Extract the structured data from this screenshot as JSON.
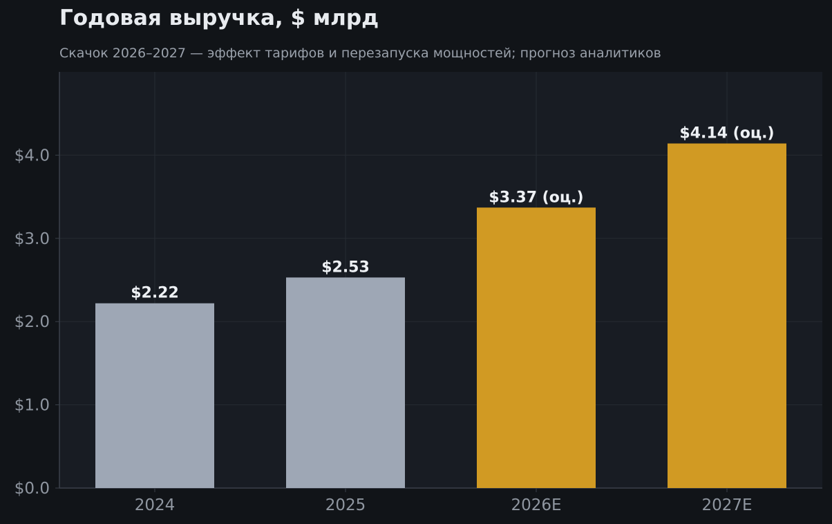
{
  "chart_data": {
    "type": "bar",
    "title": "Годовая выручка, $ млрд",
    "subtitle": "Скачок 2026–2027 — эффект тарифов и перезапуска мощностей; прогноз аналитиков",
    "categories": [
      "2024",
      "2025",
      "2026E",
      "2027E"
    ],
    "values": [
      2.22,
      2.53,
      3.37,
      4.14
    ],
    "data_labels": [
      "$2.22",
      "$2.53",
      "$3.37 (оц.)",
      "$4.14 (оц.)"
    ],
    "estimate": [
      false,
      false,
      true,
      true
    ],
    "ylim": [
      0,
      5.0
    ],
    "yticks": [
      0,
      1,
      2,
      3,
      4
    ],
    "ytick_labels": [
      "$0.0",
      "$1.0",
      "$2.0",
      "$3.0",
      "$4.0"
    ],
    "xlabel": "",
    "ylabel": "",
    "grid": true,
    "legend": "none",
    "colors": {
      "actual": "#9ea7b5",
      "estimate": "#d19a23",
      "background": "#111418",
      "plot_background": "#181c23",
      "grid": "#262b33",
      "axis": "#3a404a"
    }
  }
}
